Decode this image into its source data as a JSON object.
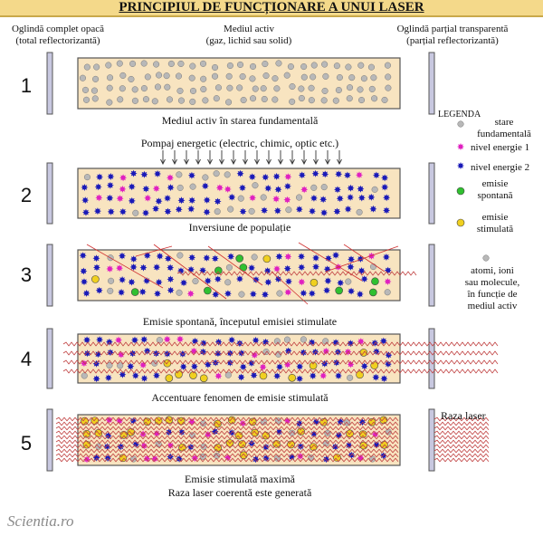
{
  "title": "PRINCIPIUL DE FUNCȚIONARE A UNUI LASER",
  "header": {
    "left_mirror_l1": "Oglindă complet opacă",
    "left_mirror_l2": "(total reflectorizantă)",
    "medium_l1": "Mediul activ",
    "medium_l2": "(gaz, lichid sau solid)",
    "right_mirror_l1": "Oglindă parțial transparentă",
    "right_mirror_l2": "(parțial reflectorizantă)"
  },
  "stages": [
    {
      "number": "1",
      "caption": "Mediul activ în starea fundamentală"
    },
    {
      "number": "2",
      "caption": "Inversiune de populație"
    },
    {
      "number": "3",
      "caption": "Emisie spontană, începutul emisiei stimulate"
    },
    {
      "number": "4",
      "caption": "Accentuare fenomen de emisie stimulată"
    },
    {
      "number": "5",
      "caption": "Emisie stimulată maximă",
      "caption2": "Raza laser coerentă este generată"
    }
  ],
  "pump_label": "Pompaj energetic (electric, chimic, optic etc.)",
  "laser_label": "Raza laser",
  "legend": {
    "title": "LEGENDA",
    "items": [
      {
        "label_l1": "stare",
        "label_l2": "fundamentală",
        "color": "#b8b8b8"
      },
      {
        "label_l1": "nivel energie 1",
        "label_l2": "",
        "color": "#e020c0"
      },
      {
        "label_l1": "nivel energie 2",
        "label_l2": "",
        "color": "#1a1ab8"
      },
      {
        "label_l1": "emisie",
        "label_l2": "spontană",
        "color": "#30c030"
      },
      {
        "label_l1": "emisie",
        "label_l2": "stimulată",
        "color": "#f0d020"
      }
    ],
    "note": [
      "atomi, ioni",
      "sau molecule,",
      "în funcție de",
      "mediul activ"
    ]
  },
  "logo": "Scientia.ro",
  "colors": {
    "medium": "#f8e4c0",
    "medium_border": "#555555",
    "mirror": "#c8c8e0",
    "laser_line": "#c04040"
  }
}
